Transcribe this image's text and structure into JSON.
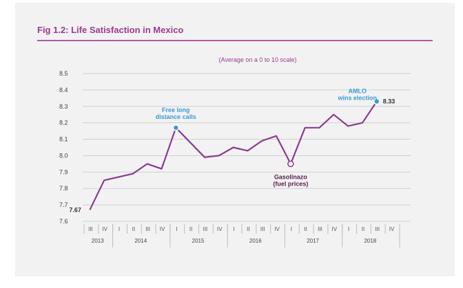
{
  "header": {
    "title": "Fig 1.2: Life Satisfaction in Mexico"
  },
  "chart_data": {
    "type": "line",
    "subtitle": "(Average on a 0 to 10 scale)",
    "ylim": [
      7.6,
      8.5
    ],
    "yticks": [
      "7.6",
      "7.7",
      "7.8",
      "7.9",
      "8.0",
      "8.1",
      "8.2",
      "8.3",
      "8.4",
      "8.5"
    ],
    "grid": true,
    "categories": [
      "2013 III",
      "2013 IV",
      "2014 I",
      "2014 II",
      "2014 III",
      "2014 IV",
      "2015 I",
      "2015 II",
      "2015 III",
      "2015 IV",
      "2016 I",
      "2016 II",
      "2016 III",
      "2016 IV",
      "2017 I",
      "2017 II",
      "2017 III",
      "2017 IV",
      "2018 I",
      "2018 II",
      "2018 III",
      "2018 IV"
    ],
    "quarter_labels": [
      "III",
      "IV",
      "I",
      "II",
      "III",
      "IV",
      "I",
      "II",
      "III",
      "IV",
      "I",
      "II",
      "III",
      "IV",
      "I",
      "II",
      "III",
      "IV",
      "I",
      "II",
      "III",
      "IV"
    ],
    "years": [
      {
        "label": "2013",
        "span": 2
      },
      {
        "label": "2014",
        "span": 4
      },
      {
        "label": "2015",
        "span": 4
      },
      {
        "label": "2016",
        "span": 4
      },
      {
        "label": "2017",
        "span": 4
      },
      {
        "label": "2018",
        "span": 4
      }
    ],
    "series": [
      {
        "name": "",
        "color": "#8b3a8f",
        "values": [
          7.67,
          7.85,
          7.89,
          7.95,
          7.92,
          8.17,
          7.99,
          8.0,
          8.05,
          8.03,
          8.09,
          8.12,
          7.95,
          8.17,
          8.17,
          8.25,
          8.18,
          8.2,
          8.24,
          8.33,
          8.33,
          8.33
        ],
        "plot_values": [
          7.67,
          7.85,
          null,
          7.89,
          7.95,
          7.92,
          8.17,
          null,
          7.99,
          8.0,
          8.05,
          8.03,
          8.09,
          8.12,
          7.95,
          8.17,
          8.17,
          8.25,
          8.18,
          8.2,
          8.33,
          null
        ]
      }
    ],
    "annotations": [
      {
        "text_lines": [
          "Free long",
          "distance calls"
        ],
        "style": "blue"
      },
      {
        "text_lines": [
          "Gasolinazo",
          "(fuel prices)"
        ],
        "style": "dark"
      },
      {
        "text_lines": [
          "AMLO",
          "wins election"
        ],
        "style": "blue"
      }
    ],
    "value_labels": [
      "7.67",
      "8.33"
    ],
    "highlight_color": "#3a9bd5",
    "line_color": "#8b3a8f"
  }
}
